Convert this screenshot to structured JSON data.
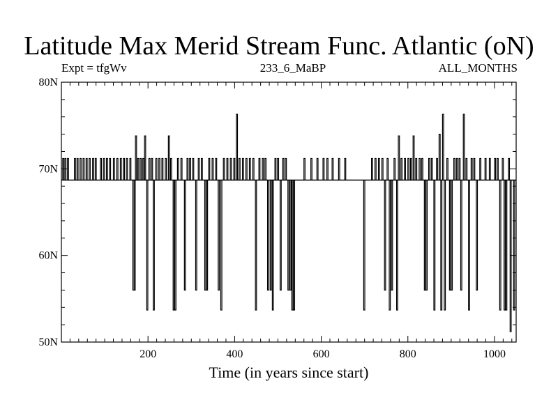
{
  "chart_data": {
    "type": "line",
    "title": "Latitude Max Merid Stream Func. Atlantic (oN)",
    "subtitle_left": "Expt = tfgWv",
    "subtitle_center": "233_6_MaBP",
    "subtitle_right": "ALL_MONTHS",
    "xlabel": "Time (in years since start)",
    "ylabel": "",
    "xlim": [
      0,
      1050
    ],
    "ylim": [
      50,
      80
    ],
    "x_ticks": [
      200,
      400,
      600,
      800,
      1000
    ],
    "y_ticks": [
      {
        "value": 50,
        "label": "50N"
      },
      {
        "value": 60,
        "label": "60N"
      },
      {
        "value": 70,
        "label": "70N"
      },
      {
        "value": 80,
        "label": "80N"
      }
    ],
    "grid": false,
    "baseline": 68.7,
    "series": [
      {
        "values_note_free": true,
        "spikes": [
          {
            "x": 3,
            "y": 71.2
          },
          {
            "x": 8,
            "y": 71.2
          },
          {
            "x": 14,
            "y": 71.2
          },
          {
            "x": 30,
            "y": 71.2
          },
          {
            "x": 36,
            "y": 71.2
          },
          {
            "x": 43,
            "y": 71.2
          },
          {
            "x": 50,
            "y": 71.2
          },
          {
            "x": 57,
            "y": 71.2
          },
          {
            "x": 64,
            "y": 71.2
          },
          {
            "x": 72,
            "y": 71.2
          },
          {
            "x": 78,
            "y": 71.2
          },
          {
            "x": 90,
            "y": 71.2
          },
          {
            "x": 97,
            "y": 71.2
          },
          {
            "x": 104,
            "y": 71.2
          },
          {
            "x": 111,
            "y": 71.2
          },
          {
            "x": 120,
            "y": 71.2
          },
          {
            "x": 128,
            "y": 71.2
          },
          {
            "x": 136,
            "y": 71.2
          },
          {
            "x": 143,
            "y": 71.2
          },
          {
            "x": 150,
            "y": 71.2
          },
          {
            "x": 158,
            "y": 71.2
          },
          {
            "x": 165,
            "y": 56.0
          },
          {
            "x": 168,
            "y": 56.0
          },
          {
            "x": 171,
            "y": 73.8
          },
          {
            "x": 176,
            "y": 71.2
          },
          {
            "x": 182,
            "y": 71.2
          },
          {
            "x": 188,
            "y": 71.2
          },
          {
            "x": 192,
            "y": 73.8
          },
          {
            "x": 197,
            "y": 53.7
          },
          {
            "x": 202,
            "y": 71.2
          },
          {
            "x": 208,
            "y": 71.2
          },
          {
            "x": 212,
            "y": 53.7
          },
          {
            "x": 218,
            "y": 71.2
          },
          {
            "x": 225,
            "y": 71.2
          },
          {
            "x": 232,
            "y": 71.2
          },
          {
            "x": 240,
            "y": 71.2
          },
          {
            "x": 247,
            "y": 73.8
          },
          {
            "x": 252,
            "y": 71.2
          },
          {
            "x": 258,
            "y": 53.7
          },
          {
            "x": 262,
            "y": 53.7
          },
          {
            "x": 268,
            "y": 71.2
          },
          {
            "x": 276,
            "y": 71.2
          },
          {
            "x": 284,
            "y": 56.0
          },
          {
            "x": 290,
            "y": 71.2
          },
          {
            "x": 296,
            "y": 71.2
          },
          {
            "x": 303,
            "y": 71.2
          },
          {
            "x": 310,
            "y": 56.0
          },
          {
            "x": 316,
            "y": 71.2
          },
          {
            "x": 323,
            "y": 71.2
          },
          {
            "x": 331,
            "y": 56.0
          },
          {
            "x": 335,
            "y": 56.0
          },
          {
            "x": 340,
            "y": 71.2
          },
          {
            "x": 348,
            "y": 71.2
          },
          {
            "x": 356,
            "y": 71.2
          },
          {
            "x": 362,
            "y": 56.0
          },
          {
            "x": 368,
            "y": 53.7
          },
          {
            "x": 374,
            "y": 71.2
          },
          {
            "x": 382,
            "y": 71.2
          },
          {
            "x": 390,
            "y": 71.2
          },
          {
            "x": 398,
            "y": 71.2
          },
          {
            "x": 404,
            "y": 76.3
          },
          {
            "x": 410,
            "y": 71.2
          },
          {
            "x": 418,
            "y": 71.2
          },
          {
            "x": 426,
            "y": 71.2
          },
          {
            "x": 434,
            "y": 71.2
          },
          {
            "x": 442,
            "y": 71.2
          },
          {
            "x": 448,
            "y": 53.7
          },
          {
            "x": 456,
            "y": 71.2
          },
          {
            "x": 464,
            "y": 71.2
          },
          {
            "x": 470,
            "y": 71.2
          },
          {
            "x": 476,
            "y": 56.0
          },
          {
            "x": 482,
            "y": 56.0
          },
          {
            "x": 487,
            "y": 53.7
          },
          {
            "x": 493,
            "y": 71.2
          },
          {
            "x": 499,
            "y": 71.2
          },
          {
            "x": 505,
            "y": 56.0
          },
          {
            "x": 511,
            "y": 71.2
          },
          {
            "x": 517,
            "y": 71.2
          },
          {
            "x": 523,
            "y": 56.0
          },
          {
            "x": 528,
            "y": 56.0
          },
          {
            "x": 532,
            "y": 53.7
          },
          {
            "x": 536,
            "y": 53.7
          },
          {
            "x": 560,
            "y": 71.2
          },
          {
            "x": 576,
            "y": 71.2
          },
          {
            "x": 590,
            "y": 71.2
          },
          {
            "x": 604,
            "y": 71.2
          },
          {
            "x": 613,
            "y": 71.2
          },
          {
            "x": 625,
            "y": 71.2
          },
          {
            "x": 640,
            "y": 71.2
          },
          {
            "x": 654,
            "y": 71.2
          },
          {
            "x": 698,
            "y": 53.7
          },
          {
            "x": 716,
            "y": 71.2
          },
          {
            "x": 724,
            "y": 71.2
          },
          {
            "x": 732,
            "y": 71.2
          },
          {
            "x": 740,
            "y": 71.2
          },
          {
            "x": 746,
            "y": 56.0
          },
          {
            "x": 752,
            "y": 71.2
          },
          {
            "x": 757,
            "y": 53.7
          },
          {
            "x": 762,
            "y": 56.0
          },
          {
            "x": 768,
            "y": 71.2
          },
          {
            "x": 774,
            "y": 53.7
          },
          {
            "x": 778,
            "y": 73.8
          },
          {
            "x": 784,
            "y": 71.2
          },
          {
            "x": 792,
            "y": 71.2
          },
          {
            "x": 800,
            "y": 71.2
          },
          {
            "x": 806,
            "y": 71.2
          },
          {
            "x": 812,
            "y": 73.8
          },
          {
            "x": 818,
            "y": 71.2
          },
          {
            "x": 826,
            "y": 71.2
          },
          {
            "x": 832,
            "y": 71.2
          },
          {
            "x": 838,
            "y": 56.0
          },
          {
            "x": 842,
            "y": 56.0
          },
          {
            "x": 848,
            "y": 71.2
          },
          {
            "x": 854,
            "y": 71.2
          },
          {
            "x": 860,
            "y": 53.7
          },
          {
            "x": 866,
            "y": 71.2
          },
          {
            "x": 872,
            "y": 74.0
          },
          {
            "x": 876,
            "y": 53.7
          },
          {
            "x": 880,
            "y": 76.3
          },
          {
            "x": 884,
            "y": 53.7
          },
          {
            "x": 890,
            "y": 71.2
          },
          {
            "x": 896,
            "y": 56.0
          },
          {
            "x": 900,
            "y": 56.0
          },
          {
            "x": 906,
            "y": 71.2
          },
          {
            "x": 912,
            "y": 71.2
          },
          {
            "x": 918,
            "y": 71.2
          },
          {
            "x": 922,
            "y": 56.0
          },
          {
            "x": 928,
            "y": 76.3
          },
          {
            "x": 934,
            "y": 71.2
          },
          {
            "x": 940,
            "y": 53.7
          },
          {
            "x": 946,
            "y": 71.2
          },
          {
            "x": 952,
            "y": 71.2
          },
          {
            "x": 958,
            "y": 56.0
          },
          {
            "x": 966,
            "y": 71.2
          },
          {
            "x": 978,
            "y": 71.2
          },
          {
            "x": 988,
            "y": 71.2
          },
          {
            "x": 1000,
            "y": 71.2
          },
          {
            "x": 1006,
            "y": 71.2
          },
          {
            "x": 1012,
            "y": 53.7
          },
          {
            "x": 1018,
            "y": 71.2
          },
          {
            "x": 1022,
            "y": 53.7
          },
          {
            "x": 1026,
            "y": 53.7
          },
          {
            "x": 1032,
            "y": 71.2
          },
          {
            "x": 1036,
            "y": 51.2
          },
          {
            "x": 1040,
            "y": 68.7
          },
          {
            "x": 1044,
            "y": 53.7
          },
          {
            "x": 1048,
            "y": 68.7
          }
        ]
      }
    ]
  }
}
